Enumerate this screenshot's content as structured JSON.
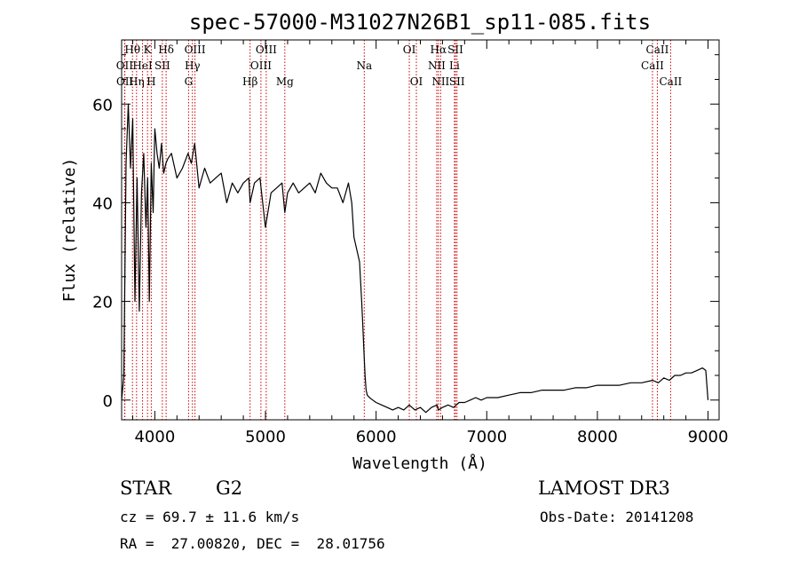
{
  "chart_data": {
    "type": "line",
    "title": "spec-57000-M31027N26B1_sp11-085.fits",
    "xlabel": "Wavelength (Å)",
    "ylabel": "Flux (relative)",
    "xlim": [
      3700,
      9100
    ],
    "ylim": [
      -4,
      73
    ],
    "xticks": [
      4000,
      5000,
      6000,
      7000,
      8000,
      9000
    ],
    "yticks": [
      0,
      20,
      40,
      60
    ],
    "grid": false,
    "line_color": "#000000",
    "marker_color": "#cc0000",
    "series": [
      {
        "x": [
          3700,
          3720,
          3740,
          3760,
          3780,
          3800,
          3820,
          3840,
          3860,
          3880,
          3900,
          3920,
          3935,
          3950,
          3968,
          3985,
          4000,
          4020,
          4040,
          4060,
          4080,
          4100,
          4120,
          4150,
          4200,
          4250,
          4300,
          4330,
          4360,
          4400,
          4450,
          4500,
          4550,
          4600,
          4650,
          4700,
          4750,
          4800,
          4850,
          4861,
          4900,
          4950,
          5000,
          5050,
          5100,
          5150,
          5175,
          5200,
          5250,
          5300,
          5350,
          5400,
          5450,
          5500,
          5550,
          5600,
          5650,
          5700,
          5750,
          5780,
          5800,
          5830,
          5850,
          5870,
          5880,
          5890,
          5900,
          5910,
          5920,
          5940,
          5970,
          6000,
          6050,
          6100,
          6150,
          6200,
          6250,
          6300,
          6350,
          6400,
          6450,
          6500,
          6550,
          6563,
          6600,
          6650,
          6700,
          6750,
          6800,
          6850,
          6900,
          6950,
          7000,
          7100,
          7200,
          7300,
          7400,
          7500,
          7600,
          7700,
          7800,
          7900,
          8000,
          8100,
          8200,
          8300,
          8400,
          8500,
          8550,
          8600,
          8650,
          8700,
          8750,
          8800,
          8850,
          8900,
          8950,
          8980,
          9000
        ],
        "y": [
          0,
          5,
          48,
          60,
          47,
          57,
          20,
          45,
          18,
          42,
          50,
          35,
          45,
          20,
          48,
          38,
          55,
          50,
          47,
          52,
          46,
          48,
          49,
          50,
          45,
          47,
          50,
          48,
          52,
          43,
          47,
          44,
          45,
          46,
          40,
          44,
          42,
          44,
          45,
          40,
          44,
          45,
          35,
          42,
          43,
          44,
          38,
          42,
          44,
          42,
          43,
          44,
          42,
          46,
          44,
          43,
          43,
          40,
          44,
          40,
          33,
          30,
          28,
          20,
          15,
          10,
          5,
          2,
          1,
          0.5,
          0,
          -0.5,
          -1,
          -1.5,
          -2,
          -1.5,
          -2,
          -1,
          -2,
          -1.5,
          -2.5,
          -1.5,
          -1,
          -2,
          -1.5,
          -1,
          -1.5,
          -0.5,
          -0.5,
          0,
          0.5,
          0,
          0.5,
          0.5,
          1,
          1.5,
          1.5,
          2,
          2,
          2,
          2.5,
          2.5,
          3,
          3,
          3,
          3.5,
          3.5,
          4,
          3.5,
          4.5,
          4,
          5,
          5,
          5.5,
          5.5,
          6,
          6.5,
          6,
          0
        ]
      }
    ],
    "lines": [
      {
        "name": "Hθ",
        "x": 3798,
        "row": 0
      },
      {
        "name": "OII",
        "x": 3727,
        "row": 1
      },
      {
        "name": "OII",
        "x": 3729,
        "row": 2
      },
      {
        "name": "Hη",
        "x": 3835,
        "row": 2
      },
      {
        "name": "HeI",
        "x": 3889,
        "row": 1
      },
      {
        "name": "K",
        "x": 3934,
        "row": 0
      },
      {
        "name": "SII",
        "x": 4068,
        "row": 1
      },
      {
        "name": "H",
        "x": 3968,
        "row": 2
      },
      {
        "name": "Hδ",
        "x": 4102,
        "row": 0
      },
      {
        "name": "OIII",
        "x": 4363,
        "row": 0
      },
      {
        "name": "Hγ",
        "x": 4340,
        "row": 1
      },
      {
        "name": "G",
        "x": 4305,
        "row": 2
      },
      {
        "name": "Hβ",
        "x": 4861,
        "row": 2
      },
      {
        "name": "OIII",
        "x": 5007,
        "row": 0
      },
      {
        "name": "OIII",
        "x": 4959,
        "row": 1
      },
      {
        "name": "Mg",
        "x": 5175,
        "row": 2
      },
      {
        "name": "Na",
        "x": 5893,
        "row": 1
      },
      {
        "name": "OI",
        "x": 6300,
        "row": 0
      },
      {
        "name": "OI",
        "x": 6364,
        "row": 2
      },
      {
        "name": "Hα",
        "x": 6563,
        "row": 0
      },
      {
        "name": "NII",
        "x": 6548,
        "row": 1
      },
      {
        "name": "NII",
        "x": 6583,
        "row": 2
      },
      {
        "name": "SII",
        "x": 6717,
        "row": 0
      },
      {
        "name": "Li",
        "x": 6708,
        "row": 1
      },
      {
        "name": "SII",
        "x": 6731,
        "row": 2
      },
      {
        "name": "CaII",
        "x": 8542,
        "row": 0
      },
      {
        "name": "CaII",
        "x": 8498,
        "row": 1
      },
      {
        "name": "CaII",
        "x": 8662,
        "row": 2
      }
    ]
  },
  "info": {
    "object_class": "STAR",
    "subclass": "G2",
    "survey": "LAMOST DR3",
    "cz": "cz = 69.7 ± 11.6 km/s",
    "obs_date": "Obs-Date: 20141208",
    "coords": "RA =  27.00820, DEC =  28.01756"
  }
}
